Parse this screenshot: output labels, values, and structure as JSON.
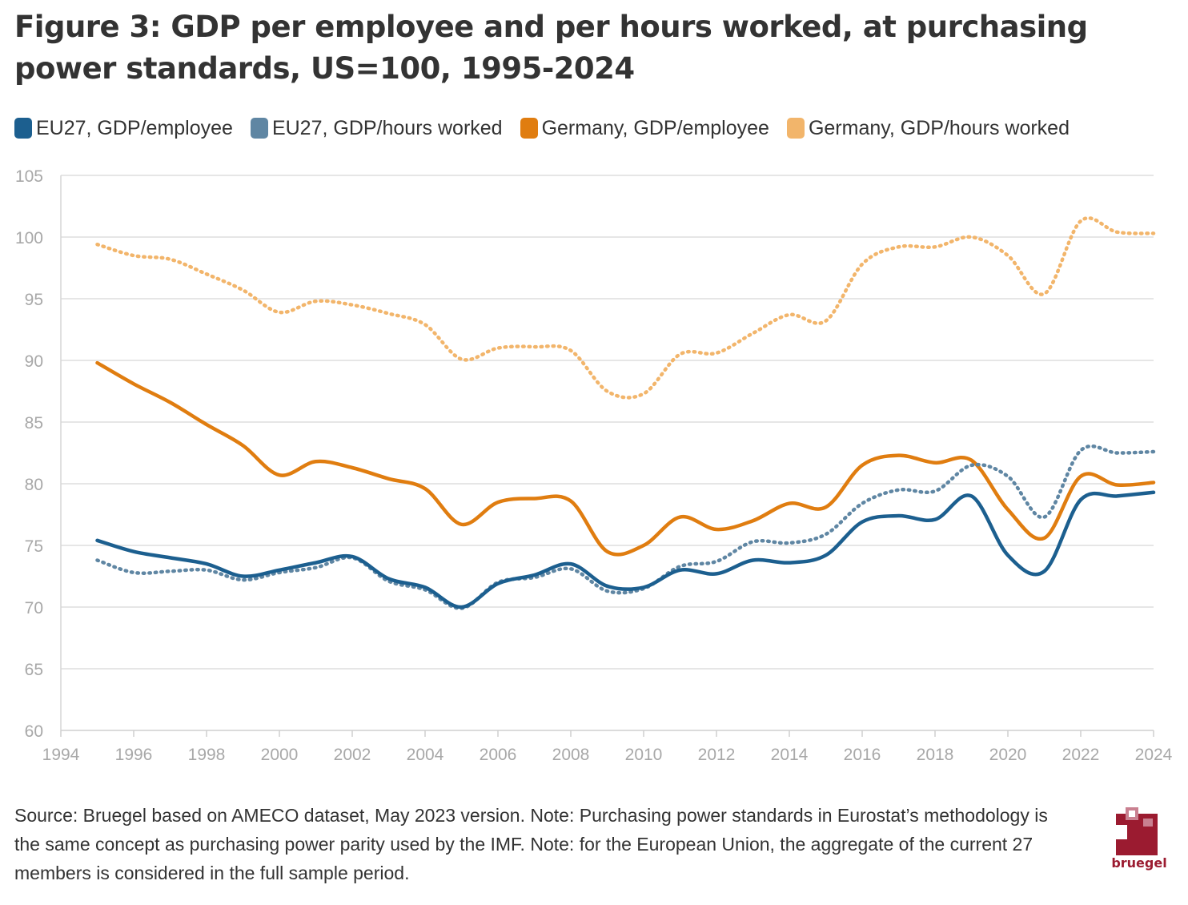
{
  "title": "Figure 3: GDP per employee and per hours worked, at purchasing power standards, US=100, 1995-2024",
  "legend": [
    {
      "label": "EU27, GDP/employee",
      "color": "#1c5f8f"
    },
    {
      "label": "EU27, GDP/hours worked",
      "color": "#5f86a3"
    },
    {
      "label": "Germany, GDP/employee",
      "color": "#e07d10"
    },
    {
      "label": "Germany, GDP/hours worked",
      "color": "#f2b56b"
    }
  ],
  "source": "Source: Bruegel based on AMECO dataset, May 2023 version. Note: Purchasing power standards in Eurostat’s methodology is the same concept as purchasing power parity used by the IMF. Note: for the European Union, the aggregate of the current 27 members is considered in the full sample period.",
  "logo": {
    "text": "bruegel",
    "color": "#9b1b30"
  },
  "chart_data": {
    "type": "line",
    "title": "Figure 3: GDP per employee and per hours worked, at purchasing power standards, US=100, 1995-2024",
    "xlabel": "",
    "ylabel": "",
    "xlim": [
      1994,
      2024
    ],
    "ylim": [
      60,
      105
    ],
    "x_ticks": [
      1994,
      1996,
      1998,
      2000,
      2002,
      2004,
      2006,
      2008,
      2010,
      2012,
      2014,
      2016,
      2018,
      2020,
      2022,
      2024
    ],
    "y_ticks": [
      60,
      65,
      70,
      75,
      80,
      85,
      90,
      95,
      100,
      105
    ],
    "grid": "horizontal",
    "legend_position": "top",
    "x": [
      1995,
      1996,
      1997,
      1998,
      1999,
      2000,
      2001,
      2002,
      2003,
      2004,
      2005,
      2006,
      2007,
      2008,
      2009,
      2010,
      2011,
      2012,
      2013,
      2014,
      2015,
      2016,
      2017,
      2018,
      2019,
      2020,
      2021,
      2022,
      2023,
      2024
    ],
    "series": [
      {
        "name": "EU27, GDP/employee",
        "color": "#1c5f8f",
        "style": "solid",
        "values": [
          75.4,
          74.5,
          74.0,
          73.5,
          72.5,
          73.0,
          73.6,
          74.1,
          72.3,
          71.6,
          70.0,
          71.9,
          72.6,
          73.5,
          71.7,
          71.6,
          73.0,
          72.7,
          73.8,
          73.6,
          74.2,
          76.9,
          77.4,
          77.1,
          79.0,
          74.2,
          72.9,
          78.7,
          79.0,
          79.3
        ]
      },
      {
        "name": "EU27, GDP/hours worked",
        "color": "#5f86a3",
        "style": "dotted",
        "values": [
          73.8,
          72.8,
          72.9,
          73.0,
          72.2,
          72.8,
          73.2,
          74.0,
          72.1,
          71.4,
          69.9,
          72.0,
          72.4,
          73.1,
          71.3,
          71.5,
          73.3,
          73.7,
          75.3,
          75.2,
          75.9,
          78.4,
          79.5,
          79.4,
          81.5,
          80.6,
          77.3,
          82.7,
          82.5,
          82.6
        ]
      },
      {
        "name": "Germany, GDP/employee",
        "color": "#e07d10",
        "style": "solid",
        "values": [
          89.8,
          88.1,
          86.6,
          84.8,
          83.1,
          80.7,
          81.8,
          81.3,
          80.4,
          79.6,
          76.7,
          78.5,
          78.8,
          78.6,
          74.5,
          75.0,
          77.3,
          76.3,
          77.0,
          78.4,
          78.1,
          81.5,
          82.3,
          81.7,
          81.9,
          77.9,
          75.6,
          80.6,
          79.9,
          80.1
        ]
      },
      {
        "name": "Germany, GDP/hours worked",
        "color": "#f2b56b",
        "style": "dotted",
        "values": [
          99.4,
          98.5,
          98.2,
          97.0,
          95.7,
          93.9,
          94.8,
          94.5,
          93.8,
          92.9,
          90.1,
          91.0,
          91.1,
          90.8,
          87.5,
          87.3,
          90.5,
          90.6,
          92.2,
          93.7,
          93.2,
          97.8,
          99.2,
          99.2,
          100.0,
          98.5,
          95.4,
          101.3,
          100.4,
          100.3
        ]
      }
    ]
  }
}
